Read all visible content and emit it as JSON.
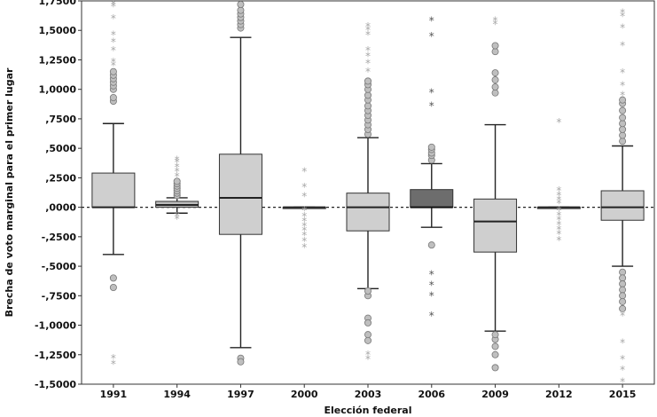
{
  "chart_data": {
    "type": "box",
    "title": "",
    "xlabel": "Elección federal",
    "ylabel": "Brecha de voto marginal para el primer lugar",
    "ylim": [
      -1.5,
      1.75
    ],
    "yticks": [
      1.75,
      1.5,
      1.25,
      1.0,
      0.75,
      0.5,
      0.25,
      0.0,
      -0.25,
      -0.5,
      -0.75,
      -1.0,
      -1.25,
      -1.5
    ],
    "ytick_labels": [
      "1,7500",
      "1,5000",
      "1,2500",
      "1,0000",
      ",7500",
      ",5000",
      ",2500",
      ",0000",
      "-,2500",
      "-,5000",
      "-,7500",
      "-1,0000",
      "-1,2500",
      "-1,5000"
    ],
    "reference_line": 0.0,
    "categories": [
      "1991",
      "1994",
      "1997",
      "2000",
      "2003",
      "2006",
      "2009",
      "2012",
      "2015"
    ],
    "boxes": [
      {
        "year": "1991",
        "whisker_low": -0.4,
        "q1": 0.0,
        "median": 0.0,
        "q3": 0.29,
        "whisker_high": 0.71,
        "fill": "#cfcfcf",
        "outliers": [
          -0.6,
          -0.68,
          0.9,
          0.93,
          1.0,
          1.03,
          1.06,
          1.09,
          1.12,
          1.15
        ],
        "extremes": [
          -1.28,
          -1.33,
          1.2,
          1.23,
          1.33,
          1.4,
          1.46,
          1.6,
          1.7,
          1.72
        ]
      },
      {
        "year": "1994",
        "whisker_low": -0.05,
        "q1": 0.0,
        "median": 0.02,
        "q3": 0.05,
        "whisker_high": 0.08,
        "fill": "#bdbdbd",
        "outliers": [
          0.1,
          0.12,
          0.14,
          0.16,
          0.18,
          0.2,
          0.22
        ],
        "extremes": [
          0.26,
          0.3,
          0.34,
          0.38,
          0.4,
          -0.08,
          -0.1
        ]
      },
      {
        "year": "1997",
        "whisker_low": -1.19,
        "q1": -0.23,
        "median": 0.08,
        "q3": 0.45,
        "whisker_high": 1.44,
        "fill": "#cfcfcf",
        "outliers": [
          -1.28,
          -1.31,
          1.52,
          1.55,
          1.58,
          1.61,
          1.64,
          1.67,
          1.72
        ],
        "extremes": []
      },
      {
        "year": "2000",
        "whisker_low": 0.0,
        "q1": 0.0,
        "median": 0.0,
        "q3": 0.0,
        "whisker_high": 0.0,
        "fill": "#cfcfcf",
        "outliers": [],
        "extremes": [
          0.3,
          0.17,
          0.09,
          -0.03,
          -0.08,
          -0.12,
          -0.16,
          -0.2,
          -0.24,
          -0.29,
          -0.34
        ]
      },
      {
        "year": "2003",
        "whisker_low": -0.69,
        "q1": -0.2,
        "median": 0.0,
        "q3": 0.12,
        "whisker_high": 0.59,
        "fill": "#cfcfcf",
        "outliers": [
          -1.08,
          -1.13,
          -0.94,
          -0.98,
          -0.75,
          -0.71,
          0.62,
          0.66,
          0.7,
          0.74,
          0.78,
          0.82,
          0.86,
          0.91,
          0.95,
          1.0,
          1.04,
          1.07
        ],
        "extremes": [
          -1.25,
          -1.29,
          1.15,
          1.22,
          1.28,
          1.33,
          1.46,
          1.5,
          1.53
        ]
      },
      {
        "year": "2006",
        "whisker_low": -0.17,
        "q1": 0.0,
        "median": 0.0,
        "q3": 0.15,
        "whisker_high": 0.37,
        "fill": "#6d6d6d",
        "outliers": [
          -0.32,
          0.4,
          0.44,
          0.46,
          0.49,
          0.51
        ],
        "extremes": [
          -0.57,
          -0.66,
          -0.75,
          -0.92,
          0.86,
          0.97,
          1.45,
          1.58
        ]
      },
      {
        "year": "2009",
        "whisker_low": -1.05,
        "q1": -0.38,
        "median": -0.12,
        "q3": 0.07,
        "whisker_high": 0.7,
        "fill": "#cfcfcf",
        "outliers": [
          -1.36,
          -1.25,
          -1.18,
          -1.12,
          -1.08,
          0.97,
          1.02,
          1.08,
          1.14,
          1.32,
          1.37
        ],
        "extremes": [
          1.55,
          1.58
        ]
      },
      {
        "year": "2012",
        "whisker_low": 0.0,
        "q1": 0.0,
        "median": 0.0,
        "q3": 0.0,
        "whisker_high": 0.0,
        "fill": "#cfcfcf",
        "outliers": [],
        "extremes": [
          0.72,
          0.14,
          0.1,
          0.06,
          0.03,
          -0.03,
          -0.07,
          -0.11,
          -0.15,
          -0.19,
          -0.23,
          -0.28
        ]
      },
      {
        "year": "2015",
        "whisker_low": -0.5,
        "q1": -0.11,
        "median": 0.0,
        "q3": 0.14,
        "whisker_high": 0.52,
        "fill": "#cfcfcf",
        "outliers": [
          -0.55,
          -0.6,
          -0.65,
          -0.7,
          -0.75,
          -0.8,
          -0.86,
          0.56,
          0.61,
          0.66,
          0.71,
          0.76,
          0.82,
          0.88,
          0.91
        ],
        "extremes": [
          -0.92,
          -1.15,
          -1.29,
          -1.38,
          -1.48,
          0.95,
          1.03,
          1.14,
          1.37,
          1.52,
          1.62,
          1.65,
          1.8
        ]
      }
    ]
  }
}
